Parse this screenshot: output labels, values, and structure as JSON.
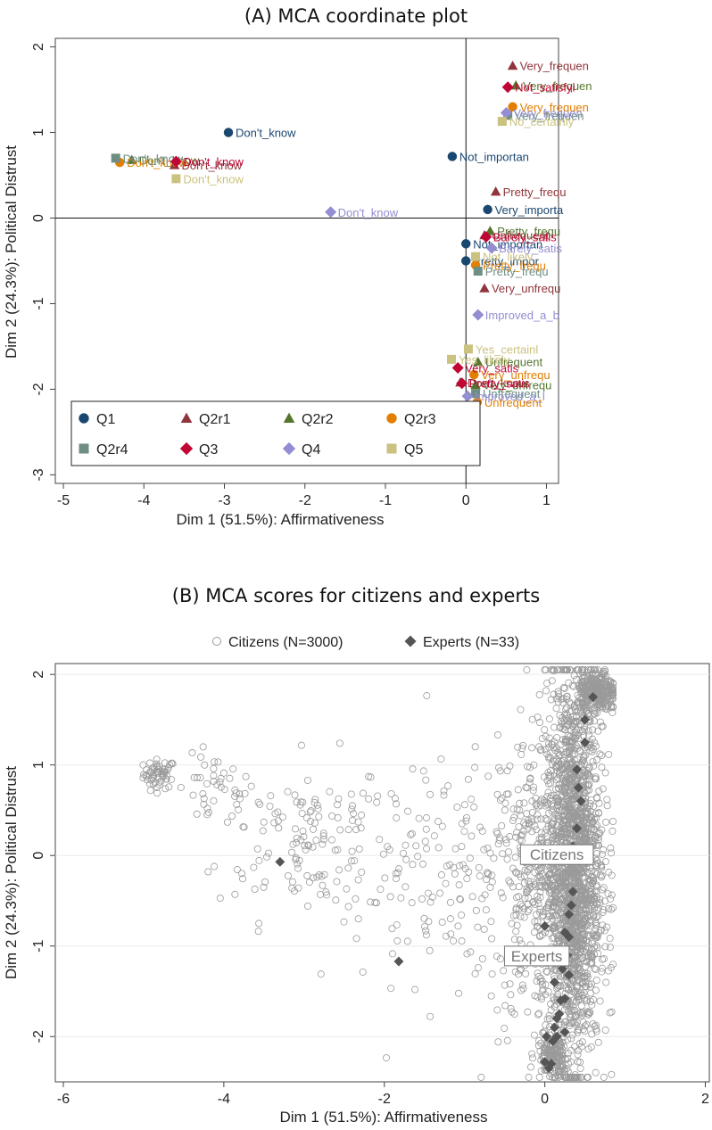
{
  "panel_a": {
    "title": "(A) MCA coordinate plot"
  },
  "panel_b": {
    "title": "(B) MCA scores for citizens and experts"
  },
  "chart_data": [
    {
      "type": "scatter",
      "title": "(A) MCA coordinate plot",
      "xlabel": "Dim 1 (51.5%): Affirmativeness",
      "ylabel": "Dim 2 (24.3%): Political Distrust",
      "xlim": [
        -5.1,
        1.15
      ],
      "ylim": [
        -3.1,
        2.1
      ],
      "xticks": [
        -5,
        -4,
        -3,
        -2,
        -1,
        0,
        1
      ],
      "yticks": [
        -3,
        -2,
        -1,
        0,
        1,
        2
      ],
      "grid": false,
      "reference_lines": {
        "x": 0,
        "y": 0
      },
      "legend_position": "bottom-left-inside",
      "series": [
        {
          "name": "Q1",
          "marker": "circle",
          "color": "#1a476f",
          "points": [
            {
              "x": -2.95,
              "y": 1.0,
              "label": "Don't_know"
            },
            {
              "x": -0.17,
              "y": 0.72,
              "label": "Not_importan"
            },
            {
              "x": 0.27,
              "y": 0.1,
              "label": "Very_importa"
            },
            {
              "x": 0.0,
              "y": -0.3,
              "label": "Not_importan"
            },
            {
              "x": 0.0,
              "y": -0.5,
              "label": "Pretty_impor"
            }
          ]
        },
        {
          "name": "Q2r1",
          "marker": "triangle",
          "color": "#90353b",
          "points": [
            {
              "x": 0.58,
              "y": 1.78,
              "label": "Very_frequen"
            },
            {
              "x": 0.37,
              "y": 0.31,
              "label": "Pretty_frequ"
            },
            {
              "x": 0.23,
              "y": -0.2,
              "label": "Unfrequent"
            },
            {
              "x": 0.23,
              "y": -0.82,
              "label": "Very_unfrequ"
            },
            {
              "x": -0.07,
              "y": -1.92,
              "label": "Don't_know"
            },
            {
              "x": -3.62,
              "y": 0.62,
              "label": "Don't_know"
            }
          ]
        },
        {
          "name": "Q2r2",
          "marker": "triangle",
          "color": "#55752f",
          "points": [
            {
              "x": 0.62,
              "y": 1.55,
              "label": "Very_frequen"
            },
            {
              "x": 0.3,
              "y": -0.15,
              "label": "Pretty_frequ"
            },
            {
              "x": 0.15,
              "y": -1.68,
              "label": "Unfrequent"
            },
            {
              "x": 0.12,
              "y": -1.95,
              "label": "Very_unfrequ"
            },
            {
              "x": -4.15,
              "y": 0.68,
              "label": "Don't_know"
            }
          ]
        },
        {
          "name": "Q2r3",
          "marker": "circle",
          "color": "#e37e00",
          "points": [
            {
              "x": 0.58,
              "y": 1.3,
              "label": "Very_frequen"
            },
            {
              "x": 0.12,
              "y": -0.55,
              "label": "Pretty_frequ"
            },
            {
              "x": 0.1,
              "y": -1.83,
              "label": "Very_unfrequ"
            },
            {
              "x": 0.14,
              "y": -2.15,
              "label": "Unfrequent"
            },
            {
              "x": -4.3,
              "y": 0.65,
              "label": "Don't_know"
            }
          ]
        },
        {
          "name": "Q2r4",
          "marker": "square",
          "color": "#6e8e84",
          "points": [
            {
              "x": 0.52,
              "y": 1.2,
              "label": "Very_frequen"
            },
            {
              "x": 0.15,
              "y": -0.62,
              "label": "Pretty_frequ"
            },
            {
              "x": 0.12,
              "y": -2.05,
              "label": "Unfrequent"
            },
            {
              "x": -4.35,
              "y": 0.7,
              "label": "Don't_know"
            }
          ]
        },
        {
          "name": "Q3",
          "marker": "diamond",
          "color": "#c10534",
          "points": [
            {
              "x": 0.52,
              "y": 1.53,
              "label": "Not_satisfyi"
            },
            {
              "x": 0.25,
              "y": -0.22,
              "label": "Barely_satis"
            },
            {
              "x": -0.1,
              "y": -1.75,
              "label": "Very_satis"
            },
            {
              "x": -0.05,
              "y": -1.93,
              "label": "Pretty_satis"
            },
            {
              "x": -3.6,
              "y": 0.66,
              "label": "Don't_know"
            }
          ]
        },
        {
          "name": "Q4",
          "marker": "diamond",
          "color": "#938dd2",
          "points": [
            {
              "x": 0.5,
              "y": 1.23,
              "label": "Very_frequen"
            },
            {
              "x": 0.32,
              "y": -0.35,
              "label": "Barely_satis"
            },
            {
              "x": 0.15,
              "y": -1.13,
              "label": "Improved_a_b"
            },
            {
              "x": 0.02,
              "y": -2.08,
              "label": "Improved_a_l"
            },
            {
              "x": -1.68,
              "y": 0.07,
              "label": "Don't_know"
            }
          ]
        },
        {
          "name": "Q5",
          "marker": "square",
          "color": "#cac27e",
          "points": [
            {
              "x": 0.45,
              "y": 1.13,
              "label": "No_certainly"
            },
            {
              "x": 0.12,
              "y": -0.45,
              "label": "Not_likely"
            },
            {
              "x": 0.03,
              "y": -1.53,
              "label": "Yes_certainl"
            },
            {
              "x": -0.18,
              "y": -1.65,
              "label": "Yes_likely"
            },
            {
              "x": -3.6,
              "y": 0.46,
              "label": "Don't_know"
            }
          ]
        }
      ]
    },
    {
      "type": "scatter",
      "title": "(B) MCA scores for citizens and experts",
      "xlabel": "Dim 1 (51.5%): Affirmativeness",
      "ylabel": "Dim 2 (24.3%): Political Distrust",
      "xlim": [
        -6.1,
        2.05
      ],
      "ylim": [
        -2.5,
        2.12
      ],
      "xticks": [
        -6,
        -4,
        -2,
        0,
        2
      ],
      "yticks": [
        -2,
        -1,
        0,
        1,
        2
      ],
      "grid": true,
      "legend_position": "top",
      "series": [
        {
          "name": "Citizens (N=3000)",
          "marker": "hollow-circle",
          "color": "#9a9a9a",
          "clusters": [
            {
              "cx": -4.8,
              "cy": 0.9,
              "sx": 0.1,
              "sy": 0.08,
              "n": 60
            },
            {
              "cx": -4.1,
              "cy": 0.7,
              "sx": 0.25,
              "sy": 0.2,
              "n": 40
            },
            {
              "cx": -3.0,
              "cy": 0.2,
              "sx": 0.55,
              "sy": 0.45,
              "n": 130
            },
            {
              "cx": -1.1,
              "cy": -0.2,
              "sx": 0.85,
              "sy": 0.6,
              "n": 180
            },
            {
              "cx": 0.0,
              "cy": -0.3,
              "sx": 0.35,
              "sy": 0.85,
              "n": 450
            },
            {
              "cx": 0.35,
              "cy": -0.15,
              "sx": 0.17,
              "sy": 1.05,
              "n": 1700
            },
            {
              "cx": 0.65,
              "cy": 1.8,
              "sx": 0.12,
              "sy": 0.12,
              "n": 300
            },
            {
              "cx": 0.1,
              "cy": -2.2,
              "sx": 0.1,
              "sy": 0.12,
              "n": 140
            }
          ]
        },
        {
          "name": "Experts (N=33)",
          "marker": "diamond",
          "color": "#555555",
          "points": [
            {
              "x": 0.6,
              "y": 1.75
            },
            {
              "x": 0.5,
              "y": 1.5
            },
            {
              "x": 0.5,
              "y": 1.25
            },
            {
              "x": 0.4,
              "y": 0.95
            },
            {
              "x": 0.45,
              "y": 0.6
            },
            {
              "x": 0.4,
              "y": 0.3
            },
            {
              "x": 0.35,
              "y": 0.1
            },
            {
              "x": 0.3,
              "y": -0.05
            },
            {
              "x": 0.35,
              "y": -0.4
            },
            {
              "x": 0.33,
              "y": -0.55
            },
            {
              "x": 0.3,
              "y": -0.65
            },
            {
              "x": 0.25,
              "y": -0.85
            },
            {
              "x": 0.3,
              "y": -0.9
            },
            {
              "x": 0.0,
              "y": -0.78
            },
            {
              "x": 0.28,
              "y": -1.1
            },
            {
              "x": 0.3,
              "y": -1.32
            },
            {
              "x": 0.12,
              "y": -1.4
            },
            {
              "x": 0.25,
              "y": -1.58
            },
            {
              "x": 0.2,
              "y": -1.6
            },
            {
              "x": 0.18,
              "y": -1.75
            },
            {
              "x": 0.15,
              "y": -1.8
            },
            {
              "x": 0.12,
              "y": -1.9
            },
            {
              "x": 0.25,
              "y": -1.95
            },
            {
              "x": 0.15,
              "y": -2.0
            },
            {
              "x": 0.1,
              "y": -2.05
            },
            {
              "x": 0.08,
              "y": -2.3
            },
            {
              "x": 0.05,
              "y": -2.35
            },
            {
              "x": 0.0,
              "y": -2.28
            },
            {
              "x": 0.02,
              "y": -2.0
            },
            {
              "x": 0.22,
              "y": -1.25
            },
            {
              "x": 0.42,
              "y": 0.75
            },
            {
              "x": -1.82,
              "y": -1.17
            },
            {
              "x": -3.3,
              "y": -0.07
            }
          ]
        }
      ],
      "annotations": [
        {
          "text": "Citizens",
          "x": 0.15,
          "y": 0.0
        },
        {
          "text": "Experts",
          "x": -0.1,
          "y": -1.12
        }
      ]
    }
  ]
}
